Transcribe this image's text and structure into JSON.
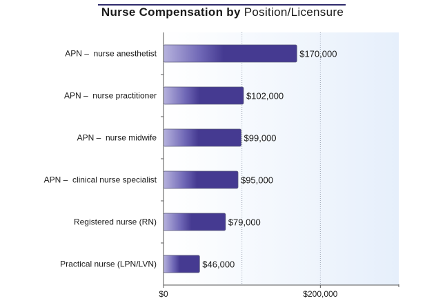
{
  "chart_data": {
    "type": "bar",
    "orientation": "horizontal",
    "title_bold": "Nurse Compensation by",
    "title_rest": "Position/Licensure",
    "categories": [
      "APN –  nurse anesthetist",
      "APN –  nurse practitioner",
      "APN –  nurse midwife",
      "APN –  clinical nurse specialist",
      "Registered nurse (RN)",
      "Practical nurse (LPN/LVN)"
    ],
    "values": [
      170000,
      102000,
      99000,
      95000,
      79000,
      46000
    ],
    "value_labels": [
      "$170,000",
      "$102,000",
      "$99,000",
      "$95,000",
      "$79,000",
      "$46,000"
    ],
    "x_ticks": [
      {
        "value": 0,
        "label": "$0"
      },
      {
        "value": 200000,
        "label": "$200,000"
      }
    ],
    "xlim": [
      0,
      300000
    ],
    "grid": "vertical dotted",
    "colors": {
      "bar": "#453a91",
      "bar_highlight": "#b7b3de",
      "plot_bg_start": "#ffffff",
      "plot_bg_end": "#e6effb",
      "axis": "#555555",
      "title_rule": "#2e2a6b"
    }
  }
}
